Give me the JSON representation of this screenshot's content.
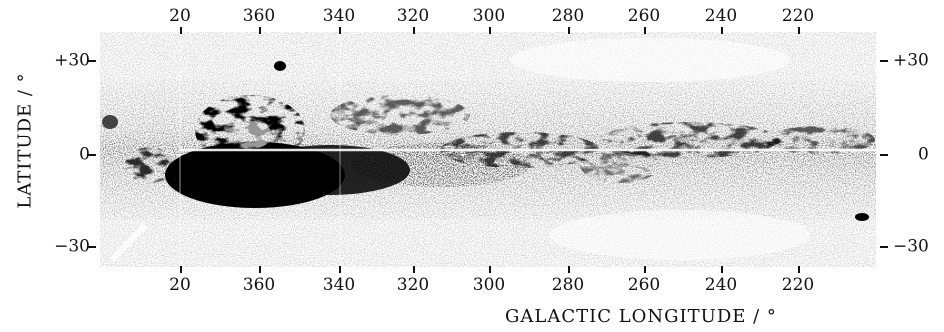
{
  "figure": {
    "x_axis_label": "GALACTIC LONGITUDE / °",
    "y_axis_label": "LATITUDE / °",
    "top_ticks": [
      "20",
      "360",
      "340",
      "320",
      "300",
      "280",
      "260",
      "240",
      "220"
    ],
    "bottom_ticks": [
      "20",
      "360",
      "340",
      "320",
      "300",
      "280",
      "260",
      "240",
      "220"
    ],
    "left_ticks": [
      "+30",
      "0",
      "−30"
    ],
    "right_ticks": [
      "+30",
      "0",
      "−30"
    ]
  }
}
